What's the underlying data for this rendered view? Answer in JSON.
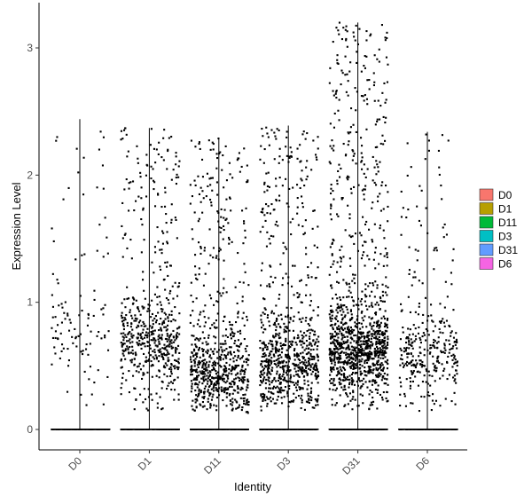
{
  "chart_data": {
    "type": "violin-jitter",
    "xlabel": "Identity",
    "ylabel": "Expression Level",
    "categories": [
      "D0",
      "D1",
      "D11",
      "D3",
      "D31",
      "D6"
    ],
    "ylim": [
      -0.18,
      3.3
    ],
    "yticks": [
      0,
      1,
      2,
      3
    ],
    "grid": false,
    "legend_position": "right",
    "series": [
      {
        "name": "D0",
        "color": "#F8766D",
        "max": 2.44,
        "zero_points": 480,
        "nonzero_points": 110,
        "mode": 0.7
      },
      {
        "name": "D1",
        "color": "#B79F00",
        "max": 2.37,
        "zero_points": 520,
        "nonzero_points": 560,
        "mode": 0.6
      },
      {
        "name": "D11",
        "color": "#00BA38",
        "max": 2.29,
        "zero_points": 520,
        "nonzero_points": 700,
        "mode": 0.35
      },
      {
        "name": "D3",
        "color": "#00BFC4",
        "max": 2.39,
        "zero_points": 520,
        "nonzero_points": 780,
        "mode": 0.45
      },
      {
        "name": "D31",
        "color": "#619CFF",
        "max": 3.2,
        "zero_points": 500,
        "nonzero_points": 1200,
        "mode": 0.55
      },
      {
        "name": "D6",
        "color": "#F564E3",
        "max": 2.34,
        "zero_points": 500,
        "nonzero_points": 330,
        "mode": 0.5
      }
    ]
  }
}
